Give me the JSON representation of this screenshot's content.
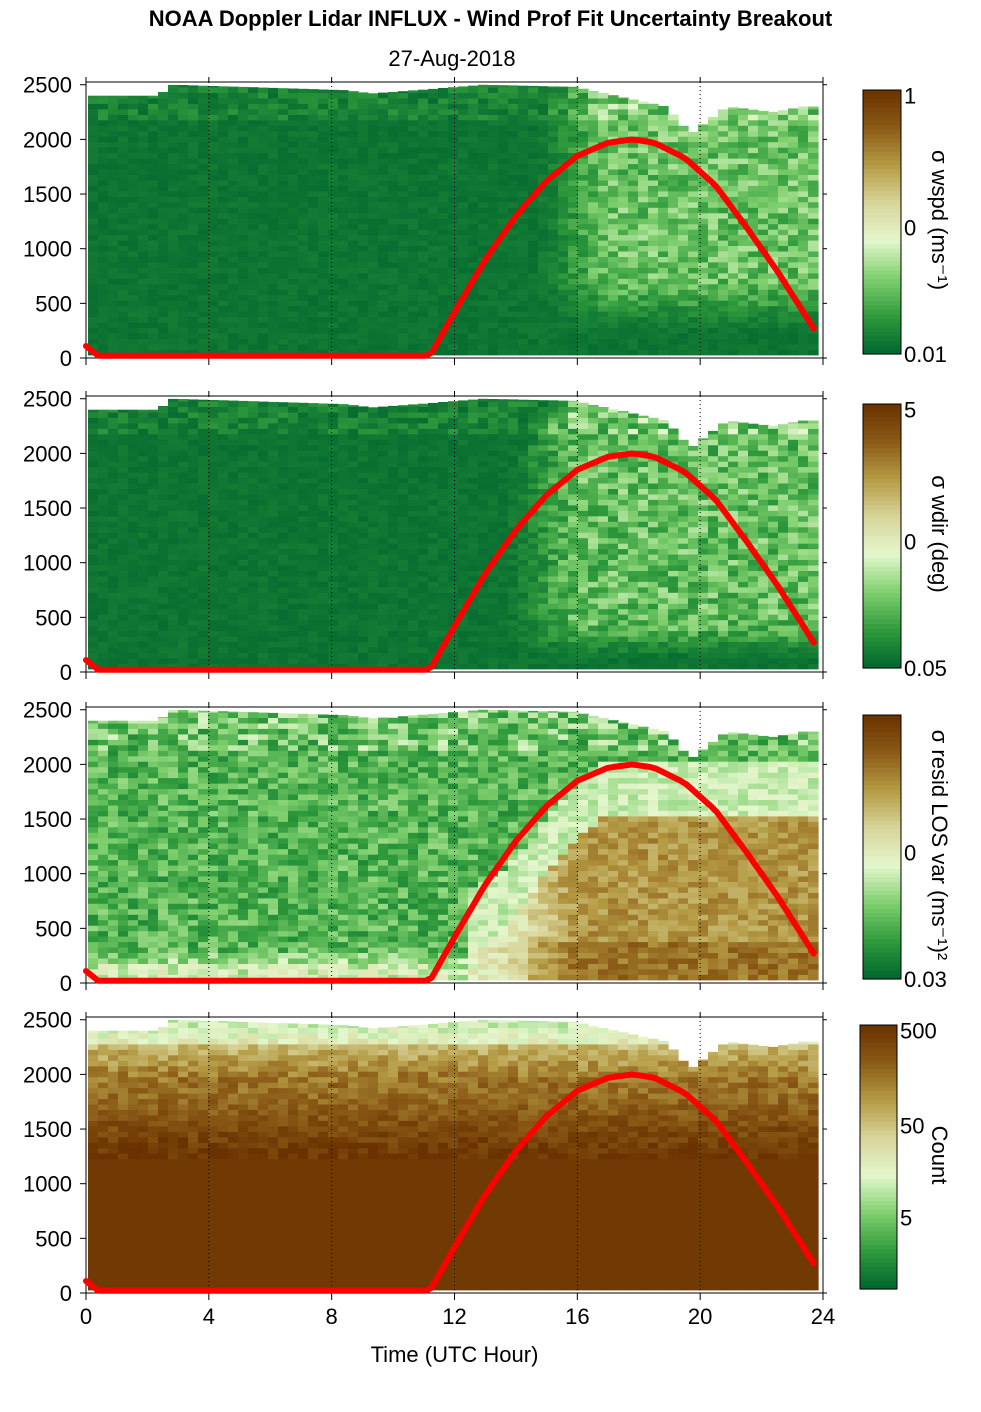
{
  "title": "NOAA Doppler Lidar INFLUX - Wind Prof Fit Uncertainty Breakout",
  "subtitle": "27-Aug-2018",
  "xlabel": "Time (UTC Hour)",
  "x_ticks": [
    "0",
    "4",
    "8",
    "12",
    "16",
    "20",
    "24"
  ],
  "y_ticks": [
    "0",
    "500",
    "1000",
    "1500",
    "2000",
    "2500"
  ],
  "colors": {
    "colormap": [
      "#00662f",
      "#2f9a3c",
      "#7fcf6e",
      "#e4f7cd",
      "#d8d59a",
      "#b59b45",
      "#8a5a16",
      "#6a3200"
    ],
    "curve": "#ff0000",
    "gaps": "#ffffff"
  },
  "chart_data": [
    {
      "type": "heatmap",
      "panel": "wspd uncertainty",
      "colorbar_label": "σ wspd (ms⁻¹)",
      "colorbar_ticks": [
        "1",
        "0",
        "0.01"
      ],
      "colorbar_scale": "log",
      "xlim": [
        0,
        24
      ],
      "ylim": [
        0,
        2500
      ],
      "field_description": "uncertainty low (dark green) nearly everywhere; lighter green above ~500 m after 15 UTC",
      "gap_top_m": [
        [
          2.3,
          2400
        ],
        [
          2.8,
          2500
        ],
        [
          8.5,
          2450
        ],
        [
          9.3,
          2420
        ],
        [
          10.8,
          2450
        ],
        [
          13,
          2500
        ],
        [
          16,
          2480
        ],
        [
          19,
          2300
        ],
        [
          19.8,
          2050
        ],
        [
          21,
          2300
        ],
        [
          22.5,
          2250
        ],
        [
          23.5,
          2300
        ]
      ],
      "curve": {
        "x": [
          0,
          0.4,
          11.2,
          12,
          13,
          14,
          15,
          16,
          17,
          17.8,
          18.5,
          19.5,
          20.5,
          21.5,
          22.5,
          23.7
        ],
        "y": [
          110,
          20,
          20,
          420,
          900,
          1300,
          1620,
          1850,
          1970,
          2000,
          1970,
          1830,
          1580,
          1200,
          800,
          270
        ]
      }
    },
    {
      "type": "heatmap",
      "panel": "wdir uncertainty",
      "colorbar_label": "σ wdir (deg)",
      "colorbar_ticks": [
        "5",
        "0",
        "0.05"
      ],
      "colorbar_scale": "log",
      "xlim": [
        0,
        24
      ],
      "ylim": [
        0,
        2500
      ],
      "field_description": "dark green overall; light green patches above ~500 m after 14 UTC",
      "gap_top_m": [
        [
          2.3,
          2400
        ],
        [
          2.8,
          2500
        ],
        [
          8.5,
          2450
        ],
        [
          9.3,
          2420
        ],
        [
          10.8,
          2450
        ],
        [
          13,
          2500
        ],
        [
          16,
          2480
        ],
        [
          19,
          2300
        ],
        [
          19.8,
          2050
        ],
        [
          21,
          2300
        ],
        [
          22.5,
          2250
        ],
        [
          23.5,
          2300
        ]
      ],
      "curve": {
        "x": [
          0,
          0.4,
          11.2,
          12,
          13,
          14,
          15,
          16,
          17,
          17.8,
          18.5,
          19.5,
          20.5,
          21.5,
          22.5,
          23.7
        ],
        "y": [
          110,
          20,
          20,
          420,
          900,
          1300,
          1620,
          1850,
          1970,
          2000,
          1970,
          1830,
          1580,
          1200,
          800,
          270
        ]
      }
    },
    {
      "type": "heatmap",
      "panel": "residual LOS variance",
      "colorbar_label": "σ resid LOS var (ms⁻¹)²",
      "colorbar_ticks": [
        "0",
        "0.03"
      ],
      "colorbar_scale": "log",
      "xlim": [
        0,
        24
      ],
      "ylim": [
        0,
        2500
      ],
      "field_description": "green aloft; light green layer below ~400 m; tan/brown in convective boundary layer 14-24 UTC below ~1500 m",
      "gap_top_m": [
        [
          2.3,
          2400
        ],
        [
          2.8,
          2500
        ],
        [
          8.5,
          2450
        ],
        [
          9.3,
          2420
        ],
        [
          10.8,
          2450
        ],
        [
          13,
          2500
        ],
        [
          16,
          2480
        ],
        [
          19,
          2300
        ],
        [
          19.8,
          2050
        ],
        [
          21,
          2300
        ],
        [
          22.5,
          2250
        ],
        [
          23.5,
          2300
        ]
      ],
      "curve": {
        "x": [
          0,
          0.4,
          11.2,
          12,
          13,
          14,
          15,
          16,
          17,
          17.8,
          18.5,
          19.5,
          20.5,
          21.5,
          22.5,
          23.7
        ],
        "y": [
          110,
          20,
          20,
          420,
          900,
          1300,
          1620,
          1850,
          1970,
          2000,
          1970,
          1830,
          1580,
          1200,
          800,
          270
        ]
      }
    },
    {
      "type": "heatmap",
      "panel": "count",
      "colorbar_label": "Count",
      "colorbar_ticks": [
        "500",
        "50",
        "5"
      ],
      "colorbar_scale": "log",
      "xlim": [
        0,
        24
      ],
      "ylim": [
        0,
        2500
      ],
      "field_description": "dark brown (high count) below ~1500 m, lighter tan/olive above, light green near top edge",
      "gap_top_m": [
        [
          2.3,
          2400
        ],
        [
          2.8,
          2500
        ],
        [
          8.5,
          2450
        ],
        [
          9.3,
          2420
        ],
        [
          10.8,
          2450
        ],
        [
          13,
          2500
        ],
        [
          16,
          2480
        ],
        [
          19,
          2300
        ],
        [
          19.8,
          2050
        ],
        [
          21,
          2300
        ],
        [
          22.5,
          2250
        ],
        [
          23.5,
          2300
        ]
      ],
      "curve": {
        "x": [
          0,
          0.4,
          11.2,
          12,
          13,
          14,
          15,
          16,
          17,
          17.8,
          18.5,
          19.5,
          20.5,
          21.5,
          22.5,
          23.7
        ],
        "y": [
          110,
          20,
          20,
          420,
          900,
          1300,
          1620,
          1850,
          1970,
          2000,
          1970,
          1830,
          1580,
          1200,
          800,
          270
        ]
      }
    }
  ]
}
